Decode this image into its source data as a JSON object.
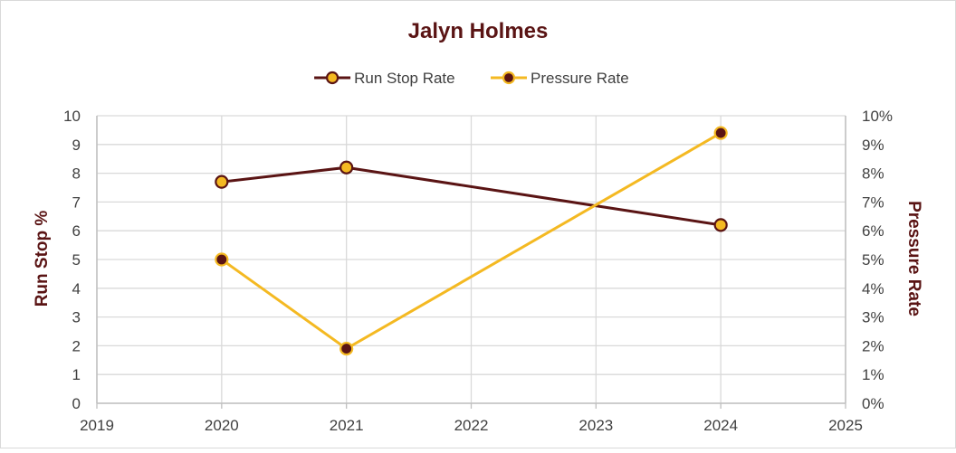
{
  "chart_data": {
    "type": "line",
    "title": "Jalyn Holmes",
    "ylabel": "Run Stop %",
    "y2label": "Pressure Rate",
    "xlim": [
      2019,
      2025
    ],
    "ylim": [
      0,
      10
    ],
    "y2lim": [
      0,
      10
    ],
    "x_ticks": [
      "2019",
      "2020",
      "2021",
      "2022",
      "2023",
      "2024",
      "2025"
    ],
    "y_ticks": [
      "0",
      "1",
      "2",
      "3",
      "4",
      "5",
      "6",
      "7",
      "8",
      "9",
      "10"
    ],
    "y2_ticks": [
      "0%",
      "1%",
      "2%",
      "3%",
      "4%",
      "5%",
      "6%",
      "7%",
      "8%",
      "9%",
      "10%"
    ],
    "grid": true,
    "legend": "top-center",
    "series": [
      {
        "name": "Run Stop Rate",
        "axis": "left",
        "line_color": "#5a1414",
        "marker_fill": "#f4b922",
        "marker_stroke": "#5a1414",
        "points": [
          {
            "x": 2020,
            "y": 7.7
          },
          {
            "x": 2021,
            "y": 8.2
          },
          {
            "x": 2024,
            "y": 6.2
          }
        ]
      },
      {
        "name": "Pressure Rate",
        "axis": "right",
        "line_color": "#f4b922",
        "marker_fill": "#5a1414",
        "marker_stroke": "#f4b922",
        "points": [
          {
            "x": 2020,
            "y": 5.0
          },
          {
            "x": 2021,
            "y": 1.9
          },
          {
            "x": 2024,
            "y": 9.4
          }
        ]
      }
    ]
  }
}
